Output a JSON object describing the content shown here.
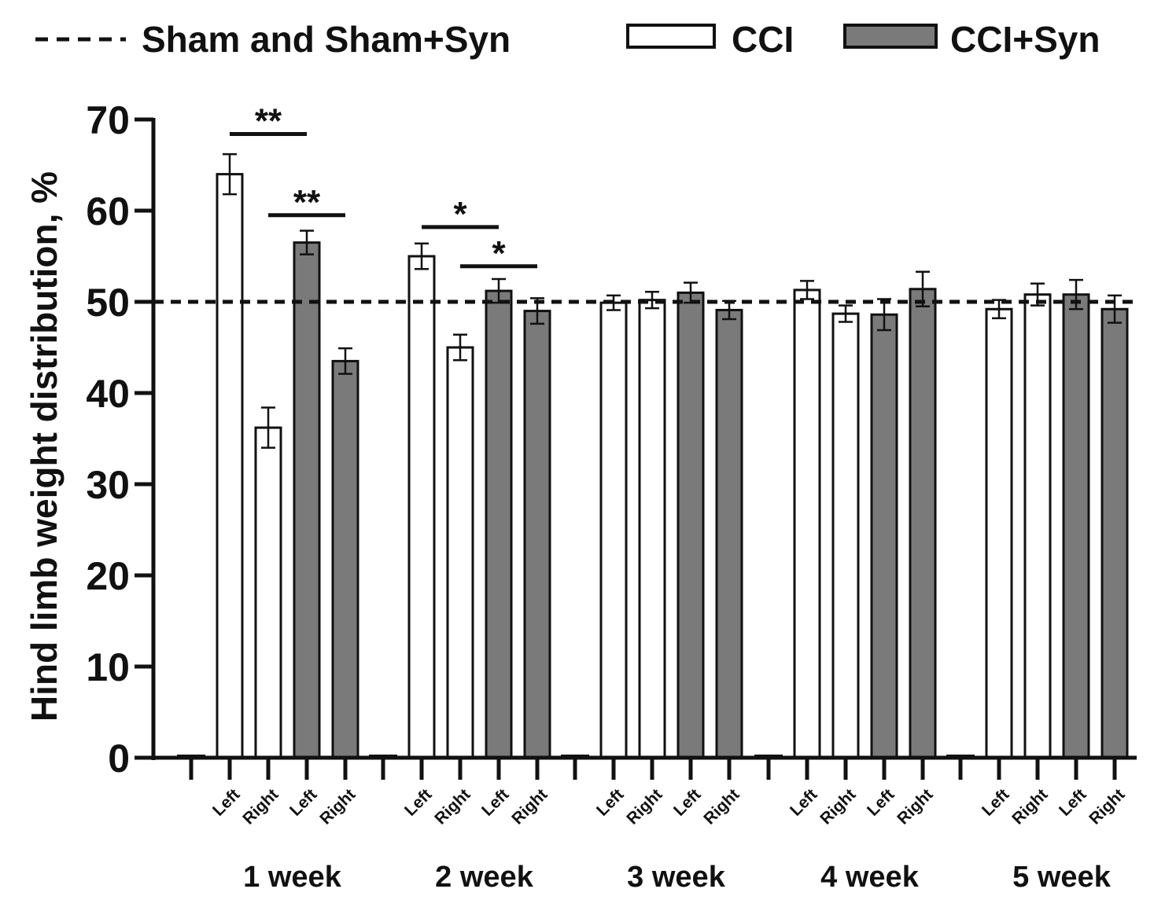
{
  "chart_data": {
    "type": "bar",
    "title": "",
    "xlabel": "",
    "ylabel": "Hind limb weight distribution, %",
    "ylim": [
      0,
      70
    ],
    "yticks": [
      0,
      10,
      20,
      30,
      40,
      50,
      60,
      70
    ],
    "grid": false,
    "legend": {
      "position": "top",
      "entries": [
        {
          "label": "Sham and Sham+Syn",
          "style": "dashed-line",
          "color": "#111111"
        },
        {
          "label": "CCI",
          "style": "bar",
          "color": "#ffffff"
        },
        {
          "label": "CCI+Syn",
          "style": "bar",
          "color": "#7a7a7a"
        }
      ]
    },
    "reference_line": {
      "label": "Sham and Sham+Syn",
      "value": 50
    },
    "groups": [
      {
        "label": "1 week",
        "bars": [
          {
            "series": "Sham and Sham+Syn",
            "side": "",
            "value": 0,
            "error": 0
          },
          {
            "series": "CCI",
            "side": "Left",
            "value": 64.0,
            "error": 2.2
          },
          {
            "series": "CCI",
            "side": "Right",
            "value": 36.2,
            "error": 2.2
          },
          {
            "series": "CCI+Syn",
            "side": "Left",
            "value": 56.5,
            "error": 1.3
          },
          {
            "series": "CCI+Syn",
            "side": "Right",
            "value": 43.5,
            "error": 1.4
          }
        ]
      },
      {
        "label": "2 week",
        "bars": [
          {
            "series": "Sham and Sham+Syn",
            "side": "",
            "value": 0,
            "error": 0
          },
          {
            "series": "CCI",
            "side": "Left",
            "value": 55.0,
            "error": 1.4
          },
          {
            "series": "CCI",
            "side": "Right",
            "value": 45.0,
            "error": 1.4
          },
          {
            "series": "CCI+Syn",
            "side": "Left",
            "value": 51.2,
            "error": 1.3
          },
          {
            "series": "CCI+Syn",
            "side": "Right",
            "value": 49.0,
            "error": 1.4
          }
        ]
      },
      {
        "label": "3 week",
        "bars": [
          {
            "series": "Sham and Sham+Syn",
            "side": "",
            "value": 0,
            "error": 0
          },
          {
            "series": "CCI",
            "side": "Left",
            "value": 49.9,
            "error": 0.8
          },
          {
            "series": "CCI",
            "side": "Right",
            "value": 50.2,
            "error": 0.9
          },
          {
            "series": "CCI+Syn",
            "side": "Left",
            "value": 51.0,
            "error": 1.1
          },
          {
            "series": "CCI+Syn",
            "side": "Right",
            "value": 49.1,
            "error": 1.0
          }
        ]
      },
      {
        "label": "4 week",
        "bars": [
          {
            "series": "Sham and Sham+Syn",
            "side": "",
            "value": 0,
            "error": 0
          },
          {
            "series": "CCI",
            "side": "Left",
            "value": 51.3,
            "error": 1.0
          },
          {
            "series": "CCI",
            "side": "Right",
            "value": 48.7,
            "error": 0.9
          },
          {
            "series": "CCI+Syn",
            "side": "Left",
            "value": 48.6,
            "error": 1.7
          },
          {
            "series": "CCI+Syn",
            "side": "Right",
            "value": 51.4,
            "error": 1.9
          }
        ]
      },
      {
        "label": "5 week",
        "bars": [
          {
            "series": "Sham and Sham+Syn",
            "side": "",
            "value": 0,
            "error": 0
          },
          {
            "series": "CCI",
            "side": "Left",
            "value": 49.2,
            "error": 1.0
          },
          {
            "series": "CCI",
            "side": "Right",
            "value": 50.8,
            "error": 1.2
          },
          {
            "series": "CCI+Syn",
            "side": "Left",
            "value": 50.8,
            "error": 1.6
          },
          {
            "series": "CCI+Syn",
            "side": "Right",
            "value": 49.2,
            "error": 1.5
          }
        ]
      }
    ],
    "significance": [
      {
        "group": 0,
        "from": 1,
        "to": 3,
        "label": "**",
        "level": 68.4
      },
      {
        "group": 0,
        "from": 2,
        "to": 4,
        "label": "**",
        "level": 59.5
      },
      {
        "group": 1,
        "from": 1,
        "to": 3,
        "label": "*",
        "level": 58.2
      },
      {
        "group": 1,
        "from": 2,
        "to": 4,
        "label": "*",
        "level": 53.9
      }
    ]
  }
}
